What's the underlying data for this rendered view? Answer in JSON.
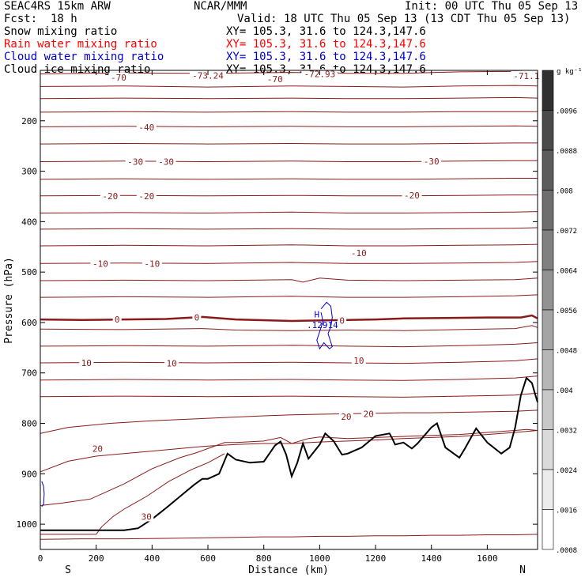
{
  "header": {
    "model": "SEAC4RS 15km ARW",
    "center": "NCAR/MMM",
    "init": "Init: 00 UTC Thu 05 Sep 13",
    "fcst_label": "Fcst:",
    "fcst_value": "18 h",
    "valid": "Valid: 18 UTC Thu 05 Sep 13 (13 CDT Thu 05 Sep 13)"
  },
  "fields": [
    {
      "name": "Snow mixing ratio",
      "xy": "XY= 105.3, 31.6 to 124.3,147.6",
      "color": "#000000"
    },
    {
      "name": "Rain water mixing ratio",
      "xy": "XY= 105.3, 31.6 to 124.3,147.6",
      "color": "#ff0000"
    },
    {
      "name": "Cloud water mixing ratio",
      "xy": "XY= 105.3, 31.6 to 124.3,147.6",
      "color": "#0000cc"
    },
    {
      "name": "Cloud ice mixing ratio",
      "xy": "XY= 105.3, 31.6 to 124.3,147.6",
      "color": "#000000"
    }
  ],
  "axes": {
    "xlabel": "Distance (km)",
    "ylabel": "Pressure (hPa)",
    "x_left_label": "S",
    "x_right_label": "N"
  },
  "colorbar": {
    "unit_label": "g kg⁻¹",
    "ticks": [
      ".0096",
      ".0088",
      ".008",
      ".0072",
      ".0064",
      ".0056",
      ".0048",
      ".004",
      ".0032",
      ".0024",
      ".0016",
      ".0008"
    ],
    "colors": [
      "#303030",
      "#4a4a4a",
      "#5c5c5c",
      "#6e6e6e",
      "#808080",
      "#929292",
      "#a4a4a4",
      "#b6b6b6",
      "#c8c8c8",
      "#dadada",
      "#ececec",
      "#ffffff"
    ]
  },
  "chart_data": {
    "type": "line",
    "title": "",
    "xlabel": "Distance (km)",
    "ylabel": "Pressure (hPa)",
    "xlim": [
      0,
      1780
    ],
    "ylim": [
      1050,
      100
    ],
    "x_ticks": [
      0,
      200,
      400,
      600,
      800,
      1000,
      1200,
      1400,
      1600
    ],
    "y_ticks": [
      200,
      300,
      400,
      500,
      600,
      700,
      800,
      900,
      1000
    ],
    "temperature_color": "#8b1a1a",
    "cloud_color": "#0000cc",
    "terrain_color": "#000000",
    "isotherms": [
      {
        "x": [
          0,
          300,
          600,
          900,
          1100,
          1300,
          1500,
          1700,
          1780
        ],
        "p": [
          107,
          105,
          106,
          104,
          106,
          106,
          103,
          102,
          103
        ]
      },
      {
        "x": [
          0,
          300,
          600,
          900,
          1100,
          1300,
          1500,
          1700,
          1780
        ],
        "p": [
          132,
          131,
          133,
          131,
          132,
          133,
          131,
          130,
          131
        ]
      },
      {
        "x": [
          0,
          300,
          600,
          900,
          1100,
          1300,
          1500,
          1700,
          1780
        ],
        "p": [
          156,
          155,
          156,
          155,
          156,
          156,
          155,
          154,
          155
        ]
      },
      {
        "x": [
          0,
          300,
          600,
          900,
          1100,
          1300,
          1500,
          1700,
          1780
        ],
        "p": [
          183,
          182,
          183,
          182,
          183,
          183,
          182,
          182,
          182
        ]
      },
      {
        "x": [
          0,
          300,
          600,
          900,
          1100,
          1300,
          1500,
          1700,
          1780
        ],
        "p": [
          212,
          211,
          212,
          211,
          212,
          212,
          211,
          210,
          211
        ]
      },
      {
        "x": [
          0,
          300,
          600,
          900,
          1100,
          1300,
          1500,
          1700,
          1780
        ],
        "p": [
          246,
          245,
          246,
          245,
          246,
          246,
          245,
          244,
          244
        ]
      },
      {
        "x": [
          0,
          300,
          600,
          900,
          1100,
          1300,
          1500,
          1700,
          1780
        ],
        "p": [
          281,
          280,
          281,
          280,
          281,
          281,
          280,
          279,
          279
        ]
      },
      {
        "x": [
          0,
          300,
          600,
          900,
          1100,
          1300,
          1500,
          1700,
          1780
        ],
        "p": [
          316,
          315,
          316,
          315,
          316,
          316,
          315,
          314,
          314
        ]
      },
      {
        "x": [
          0,
          300,
          600,
          900,
          1100,
          1300,
          1500,
          1700,
          1780
        ],
        "p": [
          349,
          348,
          349,
          348,
          349,
          349,
          348,
          347,
          347
        ]
      },
      {
        "x": [
          0,
          300,
          600,
          900,
          1100,
          1300,
          1500,
          1700,
          1780
        ],
        "p": [
          383,
          382,
          383,
          381,
          383,
          383,
          382,
          381,
          380
        ]
      },
      {
        "x": [
          0,
          300,
          600,
          900,
          1100,
          1300,
          1500,
          1700,
          1780
        ],
        "p": [
          415,
          414,
          415,
          414,
          415,
          415,
          414,
          413,
          412
        ]
      },
      {
        "x": [
          0,
          300,
          600,
          900,
          1100,
          1300,
          1500,
          1700,
          1780
        ],
        "p": [
          448,
          447,
          448,
          446,
          448,
          448,
          447,
          446,
          445
        ]
      },
      {
        "x": [
          0,
          300,
          600,
          900,
          1100,
          1300,
          1500,
          1700,
          1780
        ],
        "p": [
          483,
          482,
          483,
          481,
          483,
          483,
          482,
          481,
          479
        ]
      },
      {
        "x": [
          0,
          300,
          600,
          900,
          940,
          1000,
          1100,
          1300,
          1500,
          1700,
          1780
        ],
        "p": [
          517,
          516,
          517,
          515,
          520,
          512,
          516,
          517,
          516,
          515,
          512
        ]
      },
      {
        "x": [
          0,
          300,
          600,
          900,
          1100,
          1300,
          1500,
          1700,
          1780
        ],
        "p": [
          550,
          549,
          550,
          548,
          550,
          550,
          549,
          547,
          545
        ]
      },
      {
        "x": [
          0,
          300,
          580,
          700,
          900,
          1100,
          1300,
          1500,
          1700,
          1760,
          1780
        ],
        "p": [
          613,
          614,
          612,
          615,
          616,
          615,
          616,
          614,
          612,
          606,
          610
        ]
      },
      {
        "x": [
          0,
          300,
          600,
          900,
          1100,
          1300,
          1500,
          1700,
          1780
        ],
        "p": [
          647,
          646,
          647,
          645,
          647,
          648,
          646,
          643,
          640
        ]
      },
      {
        "x": [
          0,
          300,
          600,
          900,
          1100,
          1300,
          1500,
          1700,
          1780
        ],
        "p": [
          680,
          679,
          680,
          679,
          680,
          681,
          679,
          676,
          672
        ]
      },
      {
        "x": [
          0,
          300,
          600,
          900,
          1100,
          1300,
          1500,
          1700,
          1780
        ],
        "p": [
          714,
          713,
          714,
          713,
          714,
          715,
          713,
          710,
          706
        ]
      },
      {
        "x": [
          0,
          300,
          600,
          900,
          1100,
          1300,
          1500,
          1700,
          1780
        ],
        "p": [
          747,
          746,
          747,
          746,
          747,
          748,
          746,
          744,
          740
        ]
      },
      {
        "x": [
          0,
          100,
          250,
          400,
          600,
          800,
          900,
          1000,
          1100,
          1200,
          1300,
          1400,
          1500,
          1600,
          1700,
          1780
        ],
        "p": [
          820,
          808,
          800,
          795,
          790,
          785,
          783,
          782,
          781,
          780,
          779,
          779,
          778,
          777,
          776,
          774
        ]
      },
      {
        "x": [
          0,
          100,
          200,
          300,
          400,
          500,
          600,
          700,
          800,
          900,
          1000,
          1100,
          1200,
          1300,
          1400,
          1500,
          1600,
          1700,
          1780
        ],
        "p": [
          896,
          875,
          865,
          860,
          855,
          850,
          845,
          842,
          840,
          840,
          837,
          835,
          833,
          830,
          828,
          826,
          822,
          818,
          814
        ]
      },
      {
        "x": [
          0,
          80,
          180,
          220,
          300,
          400,
          500,
          560,
          600,
          660,
          700,
          800,
          860,
          900,
          960,
          1000,
          1100,
          1200,
          1300,
          1400,
          1500,
          1600,
          1700,
          1740,
          1780
        ],
        "p": [
          963,
          958,
          950,
          940,
          920,
          890,
          868,
          858,
          850,
          838,
          838,
          835,
          828,
          840,
          830,
          827,
          830,
          828,
          826,
          824,
          822,
          818,
          814,
          812,
          814
        ]
      },
      {
        "x": [
          0,
          100,
          200,
          220,
          260,
          300,
          380,
          460,
          540,
          600,
          660
        ],
        "p": [
          1020,
          1020,
          1020,
          1005,
          985,
          970,
          945,
          915,
          892,
          878,
          860
        ]
      },
      {
        "x": [
          0,
          150,
          300,
          450,
          600,
          700,
          800,
          900,
          1000,
          1100,
          1200,
          1300,
          1400,
          1500,
          1600,
          1700,
          1780
        ],
        "p": [
          1030,
          1029,
          1029,
          1028,
          1027,
          1026,
          1025,
          1025,
          1024,
          1024,
          1023,
          1023,
          1022,
          1022,
          1021,
          1021,
          1020
        ]
      }
    ],
    "freezing_level": {
      "x": [
        0,
        150,
        300,
        450,
        580,
        700,
        900,
        1100,
        1200,
        1300,
        1450,
        1600,
        1720,
        1760,
        1780
      ],
      "p": [
        594,
        595,
        594,
        593,
        589,
        594,
        597,
        595,
        594,
        592,
        591,
        590,
        590,
        586,
        592
      ]
    },
    "temperature_labels": [
      {
        "text": "-70",
        "x": 280,
        "p": 114
      },
      {
        "text": "-73.24",
        "x": 600,
        "p": 110
      },
      {
        "text": "-70",
        "x": 840,
        "p": 117
      },
      {
        "text": "-72.93",
        "x": 1000,
        "p": 107
      },
      {
        "text": "-71.1",
        "x": 1740,
        "p": 111
      },
      {
        "text": "-40",
        "x": 380,
        "p": 213
      },
      {
        "text": "-30",
        "x": 340,
        "p": 281
      },
      {
        "text": "-30",
        "x": 450,
        "p": 281
      },
      {
        "text": "-30",
        "x": 1400,
        "p": 280
      },
      {
        "text": "-20",
        "x": 250,
        "p": 349
      },
      {
        "text": "-20",
        "x": 380,
        "p": 349
      },
      {
        "text": "-20",
        "x": 1330,
        "p": 348
      },
      {
        "text": "-10",
        "x": 215,
        "p": 483
      },
      {
        "text": "-10",
        "x": 400,
        "p": 483
      },
      {
        "text": "-10",
        "x": 1140,
        "p": 462
      },
      {
        "text": "0",
        "x": 275,
        "p": 594
      },
      {
        "text": "0",
        "x": 560,
        "p": 590
      },
      {
        "text": "0",
        "x": 1080,
        "p": 596
      },
      {
        "text": "10",
        "x": 165,
        "p": 680
      },
      {
        "text": "10",
        "x": 470,
        "p": 681
      },
      {
        "text": "10",
        "x": 1140,
        "p": 675
      },
      {
        "text": "20",
        "x": 205,
        "p": 850
      },
      {
        "text": "20",
        "x": 1095,
        "p": 787
      },
      {
        "text": "20",
        "x": 1175,
        "p": 781
      },
      {
        "text": "30",
        "x": 380,
        "p": 985
      }
    ],
    "cloud_contour": {
      "x": [
        1005,
        1025,
        1040,
        1045,
        1040,
        1030,
        1045,
        1035,
        1015,
        1000,
        990,
        1000,
        1012,
        1005
      ],
      "p": [
        573,
        560,
        568,
        590,
        608,
        622,
        648,
        652,
        640,
        652,
        635,
        618,
        598,
        580
      ]
    },
    "cloud_marker": {
      "text": "H",
      "x": 990,
      "p": 590
    },
    "cloud_max_label": {
      "text": ".12914",
      "x": 1010,
      "p": 611
    },
    "edge_blob": {
      "x": [
        5,
        12,
        14,
        12,
        5
      ],
      "p": [
        915,
        925,
        940,
        960,
        965
      ]
    },
    "terrain": {
      "x": [
        0,
        100,
        200,
        300,
        350,
        400,
        450,
        500,
        550,
        580,
        600,
        640,
        670,
        700,
        750,
        800,
        840,
        860,
        880,
        900,
        920,
        940,
        960,
        1000,
        1020,
        1050,
        1080,
        1100,
        1150,
        1200,
        1250,
        1260,
        1270,
        1300,
        1330,
        1350,
        1400,
        1420,
        1450,
        1500,
        1520,
        1560,
        1600,
        1650,
        1680,
        1700,
        1720,
        1740,
        1760,
        1770,
        1780
      ],
      "p": [
        1012,
        1012,
        1012,
        1012,
        1008,
        990,
        968,
        945,
        922,
        910,
        910,
        900,
        860,
        872,
        878,
        876,
        844,
        836,
        862,
        905,
        878,
        840,
        870,
        842,
        820,
        835,
        862,
        860,
        848,
        825,
        820,
        830,
        842,
        838,
        850,
        840,
        808,
        800,
        848,
        868,
        850,
        810,
        838,
        860,
        848,
        808,
        745,
        710,
        720,
        740,
        758
      ]
    }
  }
}
